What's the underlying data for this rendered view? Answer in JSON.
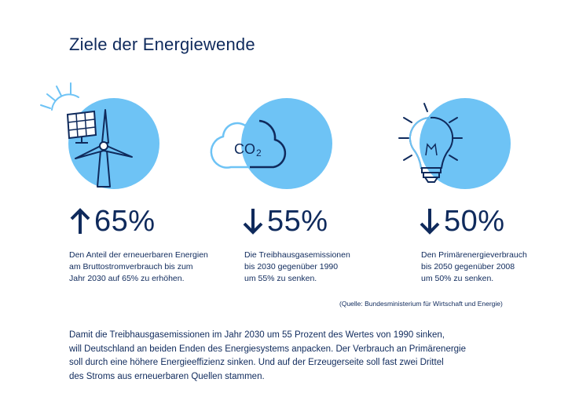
{
  "title": "Ziele der Energiewende",
  "colors": {
    "navy": "#0f2a5c",
    "circle": "#6ec3f5",
    "white": "#ffffff"
  },
  "items": [
    {
      "icon": "wind-turbine-solar-icon",
      "direction": "up",
      "value": "65%",
      "description": "Den Anteil der erneuerbaren Energien\nam Bruttostromverbrauch bis zum\nJahr 2030 auf 65% zu erhöhen."
    },
    {
      "icon": "co2-cloud-icon",
      "direction": "down",
      "value": "55%",
      "description": "Die Treibhausgasemissionen\nbis 2030 gegenüber 1990\num 55% zu senken."
    },
    {
      "icon": "light-bulb-icon",
      "direction": "down",
      "value": "50%",
      "description": "Den Primärenergieverbrauch\nbis 2050 gegenüber 2008\num 50% zu senken."
    }
  ],
  "co2_label": "CO",
  "co2_subscript": "2",
  "source": "(Quelle: Bundesministerium für Wirtschaft und Energie)",
  "body": "Damit die Treibhausgasemissionen im Jahr 2030 um 55 Prozent des Wertes von 1990 sinken,\nwill Deutschland an beiden Enden des Energiesystems anpacken. Der Verbrauch an Primärenergie\nsoll durch eine höhere Energieeffizienz sinken. Und auf der Erzeugerseite soll fast zwei Drittel\ndes Stroms aus erneuerbaren Quellen stammen."
}
